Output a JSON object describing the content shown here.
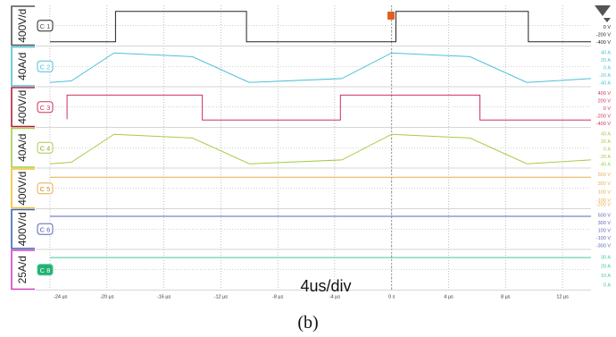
{
  "figure": {
    "caption": "(b)",
    "time_per_div": "4us/div"
  },
  "chart_data": {
    "type": "line",
    "x_unit": "µs",
    "x_range": [
      -24,
      14
    ],
    "x_ticks": [
      {
        "v": -24,
        "label": "-24 µs"
      },
      {
        "v": -20,
        "label": "-20 µs"
      },
      {
        "v": -16,
        "label": "-16 µs"
      },
      {
        "v": -12,
        "label": "-12 µs"
      },
      {
        "v": -8,
        "label": "-8 µs"
      },
      {
        "v": -4,
        "label": "-4 µs"
      },
      {
        "v": 0,
        "label": "0 s"
      },
      {
        "v": 4,
        "label": "4 µs"
      },
      {
        "v": 8,
        "label": "8 µs"
      },
      {
        "v": 12,
        "label": "12 µs"
      }
    ],
    "trigger_x": 0,
    "channels": [
      {
        "name": "C 1",
        "scale": "400V/d",
        "color": "#222222",
        "frame": "#555555",
        "badge_text": "#555555",
        "badge_bg": "#ffffff",
        "ylim": [
          -420,
          420
        ],
        "ticks": [
          {
            "v": 0,
            "label": "0 V"
          },
          {
            "v": -200,
            "label": "-200 V"
          },
          {
            "v": -400,
            "label": "-400 V"
          }
        ],
        "points": [
          [
            -24,
            -400
          ],
          [
            -19.4,
            -400
          ],
          [
            -19.4,
            400
          ],
          [
            -10.2,
            400
          ],
          [
            -10.2,
            -400
          ],
          [
            0.3,
            -400
          ],
          [
            0.3,
            400
          ],
          [
            9.6,
            400
          ],
          [
            9.6,
            -400
          ],
          [
            14,
            -400
          ]
        ]
      },
      {
        "name": "C 2",
        "scale": "40A/d",
        "color": "#4ec0d4",
        "frame": "#4ec0d4",
        "badge_text": "#4ec0d4",
        "badge_bg": "#ffffff",
        "ylim": [
          -42,
          42
        ],
        "ticks": [
          {
            "v": 40,
            "label": "40 A"
          },
          {
            "v": 20,
            "label": "20 A"
          },
          {
            "v": 0,
            "label": "0 A"
          },
          {
            "v": -20,
            "label": "-20 A"
          },
          {
            "v": -40,
            "label": "-40 A"
          }
        ],
        "points": [
          [
            -24,
            -40
          ],
          [
            -22.5,
            -36
          ],
          [
            -19.5,
            38
          ],
          [
            -14,
            28
          ],
          [
            -10,
            -40
          ],
          [
            -3.5,
            -30
          ],
          [
            0,
            38
          ],
          [
            5.5,
            28
          ],
          [
            9.5,
            -40
          ],
          [
            14,
            -30
          ]
        ]
      },
      {
        "name": "C 3",
        "scale": "400V/d",
        "color": "#d0305a",
        "frame": "#b0203a",
        "badge_text": "#d0305a",
        "badge_bg": "#ffffff",
        "ylim": [
          -420,
          420
        ],
        "ticks": [
          {
            "v": 400,
            "label": "400 V"
          },
          {
            "v": 200,
            "label": "200 V"
          },
          {
            "v": 0,
            "label": "0 V"
          },
          {
            "v": -200,
            "label": "-200 V"
          },
          {
            "v": -400,
            "label": "-400 V"
          }
        ],
        "points": [
          [
            -22.8,
            -300
          ],
          [
            -22.8,
            340
          ],
          [
            -13.3,
            340
          ],
          [
            -13.3,
            -320
          ],
          [
            -3.6,
            -320
          ],
          [
            -3.6,
            340
          ],
          [
            6.2,
            340
          ],
          [
            6.2,
            -320
          ],
          [
            14,
            -320
          ]
        ]
      },
      {
        "name": "C 4",
        "scale": "40A/d",
        "color": "#a6cc48",
        "frame": "#a6cc48",
        "badge_text": "#8aaa30",
        "badge_bg": "#ffffff",
        "ylim": [
          -42,
          42
        ],
        "ticks": [
          {
            "v": 40,
            "label": "40 A"
          },
          {
            "v": 20,
            "label": "20 A"
          },
          {
            "v": 0,
            "label": "0 A"
          },
          {
            "v": -20,
            "label": "-20 A"
          },
          {
            "v": -40,
            "label": "-40 A"
          }
        ],
        "points": [
          [
            -24,
            -40
          ],
          [
            -22.5,
            -36
          ],
          [
            -19.5,
            38
          ],
          [
            -14,
            28
          ],
          [
            -10,
            -40
          ],
          [
            -3.5,
            -30
          ],
          [
            0,
            38
          ],
          [
            5.5,
            28
          ],
          [
            9.5,
            -40
          ],
          [
            14,
            -30
          ]
        ]
      },
      {
        "name": "C 5",
        "scale": "400V/d",
        "color": "#e8b048",
        "frame": "#f0c030",
        "badge_text": "#c08a30",
        "badge_bg": "#ffffff",
        "ylim": [
          -220,
          520
        ],
        "ticks": [
          {
            "v": 500,
            "label": "500 V"
          },
          {
            "v": 300,
            "label": "300 V"
          },
          {
            "v": 100,
            "label": "100 V"
          },
          {
            "v": -100,
            "label": "-100 V"
          },
          {
            "v": -200,
            "label": "-200 V"
          }
        ],
        "points": [
          [
            -24,
            430
          ],
          [
            14,
            430
          ]
        ]
      },
      {
        "name": "C 6",
        "scale": "400V/d",
        "color": "#5a66b8",
        "frame": "#3a64b0",
        "badge_text": "#4a5aa8",
        "badge_bg": "#ffffff",
        "ylim": [
          -320,
          520
        ],
        "ticks": [
          {
            "v": 500,
            "label": "500 V"
          },
          {
            "v": 300,
            "label": "300 V"
          },
          {
            "v": 100,
            "label": "100 V"
          },
          {
            "v": -100,
            "label": "-100 V"
          },
          {
            "v": -300,
            "label": "-300 V"
          }
        ],
        "points": [
          [
            -24,
            460
          ],
          [
            14,
            460
          ]
        ]
      },
      {
        "name": "C 8",
        "scale": "25A/d",
        "color": "#44c8a0",
        "frame": "#d040c0",
        "badge_text": "#ffffff",
        "badge_bg": "#22b070",
        "ylim": [
          -2,
          32
        ],
        "ticks": [
          {
            "v": 30,
            "label": "30 A"
          },
          {
            "v": 20,
            "label": "20 A"
          },
          {
            "v": 10,
            "label": "10 A"
          },
          {
            "v": 0,
            "label": "0 A"
          }
        ],
        "points": [
          [
            -24,
            29
          ],
          [
            14,
            29
          ]
        ]
      }
    ]
  }
}
